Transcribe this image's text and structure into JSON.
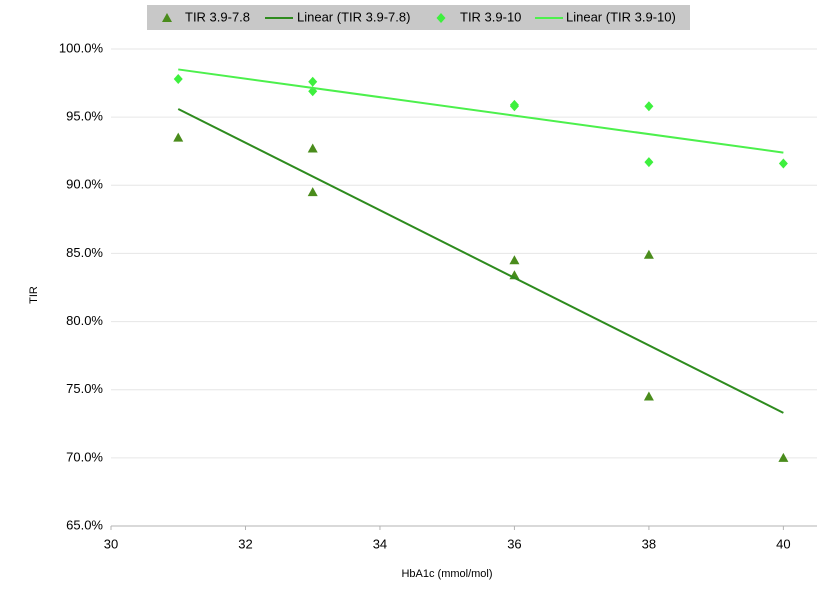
{
  "chart_data": {
    "type": "scatter",
    "x_label": "HbA1c (mmol/mol)",
    "y_label": "TIR",
    "xlim": [
      30,
      40.5
    ],
    "xticks": [
      30,
      32,
      34,
      36,
      38,
      40
    ],
    "ylim": [
      65,
      100
    ],
    "yticks": [
      {
        "value": 65,
        "label": "65.0%"
      },
      {
        "value": 70,
        "label": "70.0%"
      },
      {
        "value": 75,
        "label": "75.0%"
      },
      {
        "value": 80,
        "label": "80.0%"
      },
      {
        "value": 85,
        "label": "85.0%"
      },
      {
        "value": 90,
        "label": "90.0%"
      },
      {
        "value": 95,
        "label": "95.0%"
      },
      {
        "value": 100,
        "label": "100.0%"
      }
    ],
    "grid": true,
    "legend": "top",
    "series": [
      {
        "name": "TIR 3.9-7.8",
        "type": "scatter",
        "marker": "triangle",
        "color": "#4a8c1c",
        "x": [
          31,
          33,
          33,
          36,
          36,
          38,
          38,
          40
        ],
        "values": [
          93.5,
          92.7,
          89.5,
          84.5,
          83.4,
          84.9,
          74.5,
          70.0
        ]
      },
      {
        "name": "Linear (TIR 3.9-7.8)",
        "type": "line",
        "color": "#2e8b1e",
        "x": [
          31,
          40
        ],
        "values": [
          95.6,
          73.3
        ]
      },
      {
        "name": "TIR 3.9-10",
        "type": "scatter",
        "marker": "diamond",
        "color": "#3ef03e",
        "x": [
          31,
          33,
          33,
          36,
          36,
          38,
          38,
          40
        ],
        "values": [
          97.8,
          97.6,
          96.9,
          95.9,
          95.8,
          95.8,
          91.7,
          91.6
        ]
      },
      {
        "name": "Linear (TIR 3.9-10)",
        "type": "line",
        "color": "#4cf04c",
        "x": [
          31,
          40
        ],
        "values": [
          98.5,
          92.4
        ]
      }
    ]
  }
}
